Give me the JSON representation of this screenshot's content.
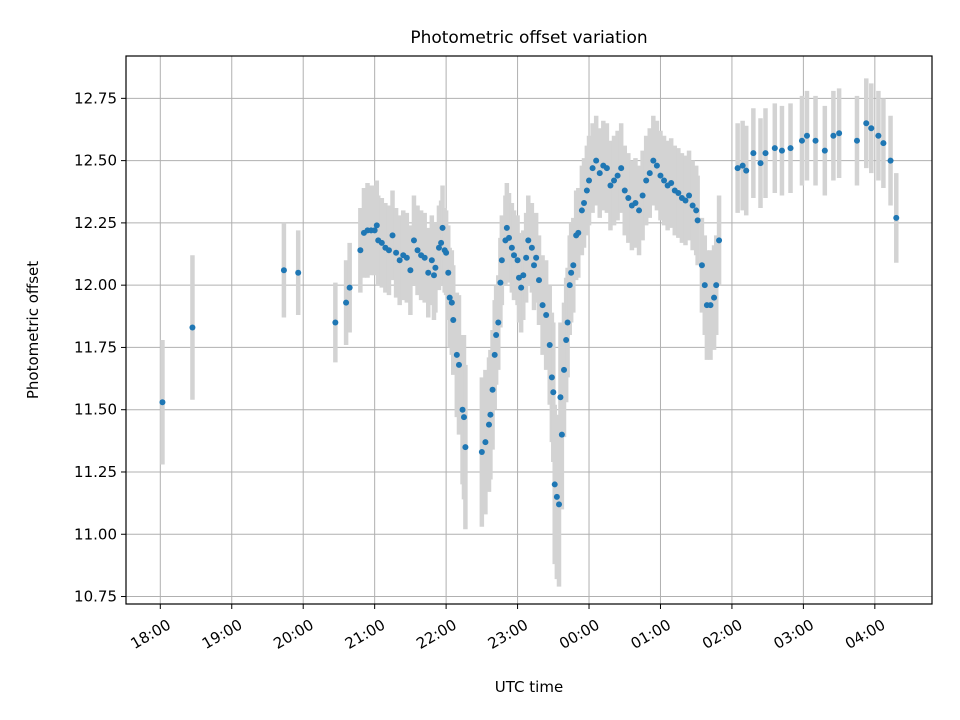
{
  "chart_data": {
    "type": "scatter",
    "title": "Photometric offset variation",
    "xlabel": "UTC time",
    "ylabel": "Photometric offset",
    "x_unit": "hours after 18:00 UTC",
    "xlim": [
      -0.48,
      10.8
    ],
    "ylim": [
      10.72,
      12.92
    ],
    "grid": true,
    "x_ticks": [
      {
        "v": 0,
        "label": "18:00"
      },
      {
        "v": 1,
        "label": "19:00"
      },
      {
        "v": 2,
        "label": "20:00"
      },
      {
        "v": 3,
        "label": "21:00"
      },
      {
        "v": 4,
        "label": "22:00"
      },
      {
        "v": 5,
        "label": "23:00"
      },
      {
        "v": 6,
        "label": "00:00"
      },
      {
        "v": 7,
        "label": "01:00"
      },
      {
        "v": 8,
        "label": "02:00"
      },
      {
        "v": 9,
        "label": "03:00"
      },
      {
        "v": 10,
        "label": "04:00"
      }
    ],
    "y_ticks": [
      {
        "v": 10.75,
        "label": "10.75"
      },
      {
        "v": 11.0,
        "label": "11.00"
      },
      {
        "v": 11.25,
        "label": "11.25"
      },
      {
        "v": 11.5,
        "label": "11.50"
      },
      {
        "v": 11.75,
        "label": "11.75"
      },
      {
        "v": 12.0,
        "label": "12.00"
      },
      {
        "v": 12.25,
        "label": "12.25"
      },
      {
        "v": 12.5,
        "label": "12.50"
      },
      {
        "v": 12.75,
        "label": "12.75"
      }
    ],
    "colors": {
      "marker": "#1f77b4",
      "errorbar": "#d3d3d3",
      "grid": "#b0b0b0"
    },
    "points": [
      [
        0.03,
        11.53,
        0.25
      ],
      [
        0.45,
        11.83,
        0.29
      ],
      [
        1.73,
        12.06,
        0.19
      ],
      [
        1.93,
        12.05,
        0.17
      ],
      [
        2.45,
        11.85,
        0.16
      ],
      [
        2.6,
        11.93,
        0.17
      ],
      [
        2.65,
        11.99,
        0.18
      ],
      [
        2.8,
        12.14,
        0.17
      ],
      [
        2.85,
        12.21,
        0.18
      ],
      [
        2.9,
        12.22,
        0.19
      ],
      [
        2.95,
        12.22,
        0.18
      ],
      [
        3.0,
        12.22,
        0.18
      ],
      [
        3.03,
        12.24,
        0.18
      ],
      [
        3.05,
        12.18,
        0.18
      ],
      [
        3.1,
        12.17,
        0.18
      ],
      [
        3.15,
        12.15,
        0.18
      ],
      [
        3.2,
        12.14,
        0.18
      ],
      [
        3.25,
        12.2,
        0.18
      ],
      [
        3.3,
        12.13,
        0.18
      ],
      [
        3.35,
        12.1,
        0.18
      ],
      [
        3.4,
        12.12,
        0.18
      ],
      [
        3.45,
        12.11,
        0.18
      ],
      [
        3.5,
        12.06,
        0.18
      ],
      [
        3.55,
        12.18,
        0.18
      ],
      [
        3.6,
        12.14,
        0.18
      ],
      [
        3.65,
        12.12,
        0.18
      ],
      [
        3.7,
        12.11,
        0.18
      ],
      [
        3.75,
        12.05,
        0.18
      ],
      [
        3.8,
        12.1,
        0.18
      ],
      [
        3.83,
        12.04,
        0.18
      ],
      [
        3.85,
        12.07,
        0.18
      ],
      [
        3.9,
        12.15,
        0.17
      ],
      [
        3.93,
        12.17,
        0.17
      ],
      [
        3.95,
        12.23,
        0.17
      ],
      [
        3.98,
        12.14,
        0.17
      ],
      [
        4.0,
        12.13,
        0.17
      ],
      [
        4.03,
        12.05,
        0.19
      ],
      [
        4.05,
        11.95,
        0.2
      ],
      [
        4.08,
        11.93,
        0.21
      ],
      [
        4.1,
        11.86,
        0.22
      ],
      [
        4.15,
        11.72,
        0.25
      ],
      [
        4.18,
        11.68,
        0.28
      ],
      [
        4.23,
        11.5,
        0.3
      ],
      [
        4.25,
        11.47,
        0.33
      ],
      [
        4.27,
        11.35,
        0.33
      ],
      [
        4.5,
        11.33,
        0.3
      ],
      [
        4.55,
        11.37,
        0.29
      ],
      [
        4.6,
        11.44,
        0.27
      ],
      [
        4.62,
        11.48,
        0.26
      ],
      [
        4.65,
        11.58,
        0.24
      ],
      [
        4.68,
        11.72,
        0.22
      ],
      [
        4.7,
        11.8,
        0.2
      ],
      [
        4.73,
        11.85,
        0.19
      ],
      [
        4.76,
        12.01,
        0.18
      ],
      [
        4.78,
        12.1,
        0.18
      ],
      [
        4.83,
        12.18,
        0.18
      ],
      [
        4.85,
        12.23,
        0.18
      ],
      [
        4.88,
        12.19,
        0.18
      ],
      [
        4.92,
        12.15,
        0.18
      ],
      [
        4.95,
        12.12,
        0.18
      ],
      [
        5.0,
        12.1,
        0.18
      ],
      [
        5.02,
        12.03,
        0.18
      ],
      [
        5.05,
        11.99,
        0.18
      ],
      [
        5.08,
        12.04,
        0.18
      ],
      [
        5.12,
        12.11,
        0.18
      ],
      [
        5.15,
        12.18,
        0.18
      ],
      [
        5.2,
        12.15,
        0.18
      ],
      [
        5.23,
        12.08,
        0.18
      ],
      [
        5.26,
        12.11,
        0.18
      ],
      [
        5.3,
        12.02,
        0.18
      ],
      [
        5.35,
        11.92,
        0.2
      ],
      [
        5.4,
        11.88,
        0.22
      ],
      [
        5.45,
        11.76,
        0.24
      ],
      [
        5.48,
        11.63,
        0.26
      ],
      [
        5.5,
        11.57,
        0.28
      ],
      [
        5.52,
        11.2,
        0.32
      ],
      [
        5.55,
        11.15,
        0.33
      ],
      [
        5.58,
        11.12,
        0.33
      ],
      [
        5.6,
        11.55,
        0.3
      ],
      [
        5.62,
        11.4,
        0.3
      ],
      [
        5.65,
        11.66,
        0.27
      ],
      [
        5.68,
        11.78,
        0.25
      ],
      [
        5.7,
        11.85,
        0.22
      ],
      [
        5.73,
        12.0,
        0.2
      ],
      [
        5.75,
        12.05,
        0.2
      ],
      [
        5.78,
        12.08,
        0.19
      ],
      [
        5.82,
        12.2,
        0.18
      ],
      [
        5.85,
        12.21,
        0.18
      ],
      [
        5.9,
        12.3,
        0.18
      ],
      [
        5.93,
        12.33,
        0.18
      ],
      [
        5.97,
        12.38,
        0.18
      ],
      [
        6.0,
        12.42,
        0.18
      ],
      [
        6.05,
        12.47,
        0.18
      ],
      [
        6.1,
        12.5,
        0.18
      ],
      [
        6.15,
        12.45,
        0.18
      ],
      [
        6.2,
        12.48,
        0.18
      ],
      [
        6.25,
        12.47,
        0.18
      ],
      [
        6.3,
        12.4,
        0.18
      ],
      [
        6.35,
        12.42,
        0.18
      ],
      [
        6.4,
        12.44,
        0.18
      ],
      [
        6.45,
        12.47,
        0.18
      ],
      [
        6.5,
        12.38,
        0.18
      ],
      [
        6.55,
        12.35,
        0.18
      ],
      [
        6.6,
        12.32,
        0.18
      ],
      [
        6.65,
        12.33,
        0.18
      ],
      [
        6.7,
        12.3,
        0.18
      ],
      [
        6.75,
        12.36,
        0.18
      ],
      [
        6.8,
        12.42,
        0.18
      ],
      [
        6.85,
        12.45,
        0.18
      ],
      [
        6.9,
        12.5,
        0.18
      ],
      [
        6.95,
        12.48,
        0.18
      ],
      [
        7.0,
        12.44,
        0.18
      ],
      [
        7.05,
        12.42,
        0.18
      ],
      [
        7.1,
        12.4,
        0.18
      ],
      [
        7.15,
        12.41,
        0.18
      ],
      [
        7.2,
        12.38,
        0.18
      ],
      [
        7.25,
        12.37,
        0.18
      ],
      [
        7.3,
        12.35,
        0.18
      ],
      [
        7.35,
        12.34,
        0.18
      ],
      [
        7.4,
        12.36,
        0.18
      ],
      [
        7.45,
        12.32,
        0.18
      ],
      [
        7.5,
        12.3,
        0.18
      ],
      [
        7.52,
        12.26,
        0.18
      ],
      [
        7.58,
        12.08,
        0.19
      ],
      [
        7.62,
        12.0,
        0.2
      ],
      [
        7.65,
        11.92,
        0.22
      ],
      [
        7.7,
        11.92,
        0.22
      ],
      [
        7.75,
        11.95,
        0.21
      ],
      [
        7.78,
        12.0,
        0.2
      ],
      [
        7.82,
        12.18,
        0.18
      ],
      [
        8.08,
        12.47,
        0.18
      ],
      [
        8.15,
        12.48,
        0.18
      ],
      [
        8.2,
        12.46,
        0.18
      ],
      [
        8.3,
        12.53,
        0.18
      ],
      [
        8.4,
        12.49,
        0.18
      ],
      [
        8.47,
        12.53,
        0.18
      ],
      [
        8.6,
        12.55,
        0.18
      ],
      [
        8.7,
        12.54,
        0.18
      ],
      [
        8.82,
        12.55,
        0.18
      ],
      [
        8.98,
        12.58,
        0.18
      ],
      [
        9.05,
        12.6,
        0.18
      ],
      [
        9.17,
        12.58,
        0.18
      ],
      [
        9.3,
        12.54,
        0.18
      ],
      [
        9.42,
        12.6,
        0.18
      ],
      [
        9.5,
        12.61,
        0.18
      ],
      [
        9.75,
        12.58,
        0.18
      ],
      [
        9.88,
        12.65,
        0.18
      ],
      [
        9.95,
        12.63,
        0.18
      ],
      [
        10.05,
        12.6,
        0.18
      ],
      [
        10.12,
        12.57,
        0.18
      ],
      [
        10.22,
        12.5,
        0.18
      ],
      [
        10.3,
        12.27,
        0.18
      ]
    ]
  }
}
